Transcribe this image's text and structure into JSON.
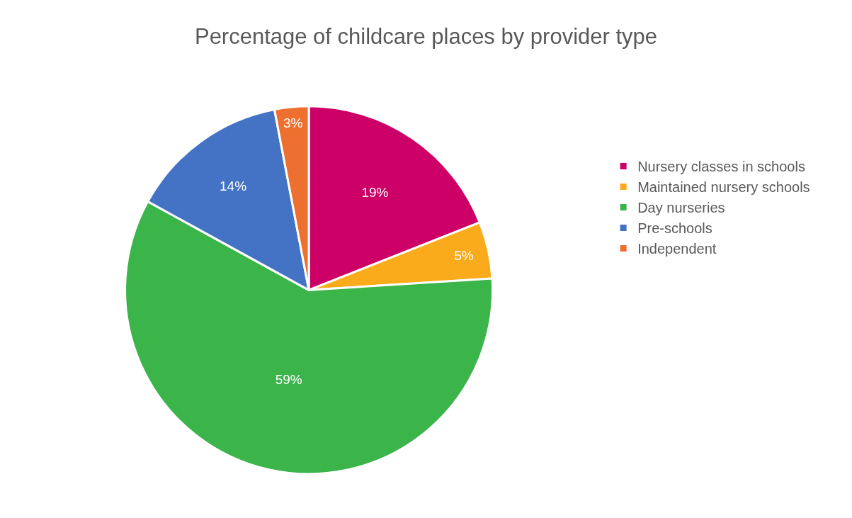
{
  "chart_data": {
    "type": "pie",
    "title": "Percentage of childcare places by provider type",
    "categories": [
      "Nursery classes in schools",
      "Maintained nursery schools",
      "Day nurseries",
      "Pre-schools",
      "Independent"
    ],
    "values": [
      19,
      5,
      59,
      14,
      3
    ],
    "value_labels": [
      "19%",
      "5%",
      "59%",
      "14%",
      "3%"
    ],
    "colors": [
      "#cc0066",
      "#f9ab1b",
      "#3bb44a",
      "#4472c4",
      "#ed7031"
    ],
    "legend": "right"
  }
}
